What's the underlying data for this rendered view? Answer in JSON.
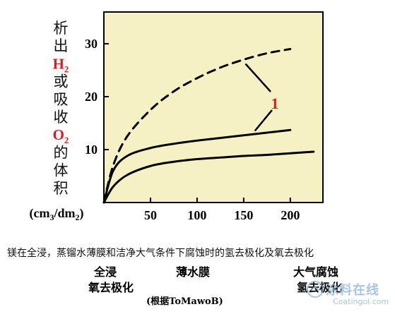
{
  "y_axis_label": {
    "parts": [
      {
        "text": "析",
        "red": false
      },
      {
        "text": "出",
        "red": false
      },
      {
        "text": "H",
        "red": true,
        "sub": "2"
      },
      {
        "text": "或",
        "red": false
      },
      {
        "text": "吸",
        "red": false
      },
      {
        "text": "收",
        "red": false
      },
      {
        "text": "O",
        "red": true,
        "sub": "2"
      },
      {
        "text": "的",
        "red": false
      },
      {
        "text": "体",
        "red": false
      },
      {
        "text": "积",
        "red": false
      }
    ],
    "units": {
      "pre": "(cm",
      "sub1": "3",
      "mid": "/dm",
      "sub2": "2",
      "post": ")"
    }
  },
  "caption": "镁在全浸，蒸镏水薄膜和洁净大气条件下腐蚀时的氢去极化及氧去极化",
  "categories": {
    "full_immersion": "全浸",
    "oxygen_depolarization": "氧去极化",
    "thin_water_film": "薄水膜",
    "atmospheric_corrosion": "大气腐蚀",
    "hydrogen_depolarization": "氢去极化"
  },
  "source": "(根据ToMawoB)",
  "watermark": {
    "text": "涂料在线",
    "sub": "Coatingol.com"
  },
  "colors": {
    "frame_fill": "#f6f1c4",
    "line": "#000000",
    "annotation": "#d81e1e"
  },
  "chart_data": {
    "type": "line",
    "title": "",
    "xlabel": "",
    "ylabel": "析出H2或吸收O2的体积 (cm3/dm2)",
    "xlim": [
      0,
      235
    ],
    "ylim": [
      0,
      36
    ],
    "x_ticks": [
      50,
      100,
      150,
      200
    ],
    "y_ticks": [
      10,
      20,
      30
    ],
    "grid": false,
    "annotation_label": "1",
    "series": [
      {
        "style": "dashed",
        "x": [
          0,
          10,
          25,
          50,
          75,
          100,
          125,
          150,
          175,
          200
        ],
        "y": [
          0,
          7,
          12.5,
          17.5,
          21,
          23.5,
          25.5,
          27,
          28.2,
          29
        ]
      },
      {
        "style": "solid",
        "x": [
          0,
          10,
          25,
          50,
          75,
          100,
          125,
          150,
          175,
          200
        ],
        "y": [
          0,
          6,
          8.8,
          10.3,
          11.1,
          11.7,
          12.2,
          12.7,
          13.2,
          13.7
        ]
      },
      {
        "style": "solid",
        "x": [
          0,
          10,
          25,
          50,
          75,
          100,
          125,
          150,
          175,
          200,
          225
        ],
        "y": [
          0,
          3,
          5.2,
          6.9,
          7.7,
          8.2,
          8.5,
          8.8,
          9.0,
          9.3,
          9.6
        ]
      }
    ]
  }
}
